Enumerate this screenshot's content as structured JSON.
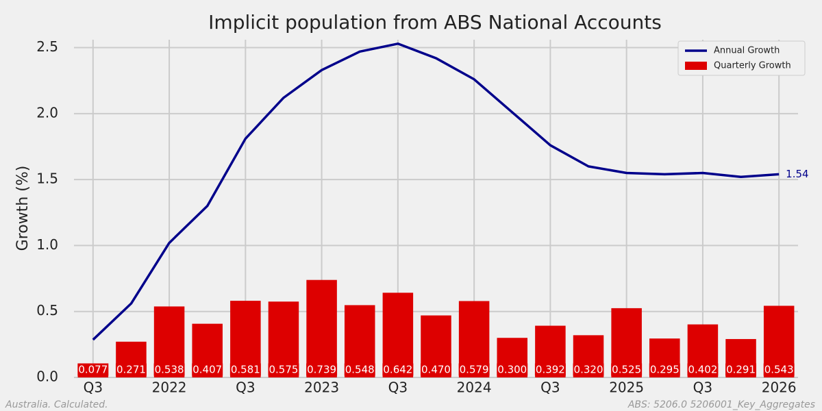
{
  "chart_data": {
    "type": "bar",
    "title": "Implicit population from ABS National Accounts",
    "ylabel": "Growth (%)",
    "categories": [
      "Q3",
      null,
      "2022",
      null,
      "Q3",
      null,
      "2023",
      null,
      "Q3",
      null,
      "2024",
      null,
      "Q3",
      null,
      "2025",
      null,
      "Q3",
      null,
      "2026"
    ],
    "series": [
      {
        "name": "Annual Growth",
        "type": "line",
        "color": "#00008b",
        "values": [
          0.286,
          0.56,
          1.02,
          1.3,
          1.81,
          2.12,
          2.33,
          2.47,
          2.53,
          2.42,
          2.26,
          2.01,
          1.76,
          1.6,
          1.55,
          1.54,
          1.55,
          1.52,
          1.54
        ]
      },
      {
        "name": "Quarterly Growth",
        "type": "bar",
        "color": "#dd0000",
        "values": [
          0.077,
          0.271,
          0.538,
          0.407,
          0.581,
          0.575,
          0.739,
          0.548,
          0.642,
          0.47,
          0.579,
          0.3,
          0.392,
          0.32,
          0.525,
          0.295,
          0.402,
          0.291,
          0.543
        ],
        "value_labels": [
          "0.077",
          "0.271",
          "0.538",
          "0.407",
          "0.581",
          "0.575",
          "0.739",
          "0.548",
          "0.642",
          "0.470",
          "0.579",
          "0.300",
          "0.392",
          "0.320",
          "0.525",
          "0.295",
          "0.402",
          "0.291",
          "0.543"
        ]
      }
    ],
    "ylim": [
      0,
      2.56
    ],
    "yticks": [
      {
        "value": 0,
        "label": "0.0"
      },
      {
        "value": 0.5,
        "label": "0.5"
      },
      {
        "value": 1,
        "label": "1.0"
      },
      {
        "value": 1.5,
        "label": "1.5"
      },
      {
        "value": 2,
        "label": "2.0"
      },
      {
        "value": 2.5,
        "label": "2.5"
      }
    ],
    "grid": true,
    "legend": "upper right",
    "footnote_left": "Australia. Calculated.",
    "footnote_right": "ABS: 5206.0 5206001_Key_Aggregates"
  }
}
